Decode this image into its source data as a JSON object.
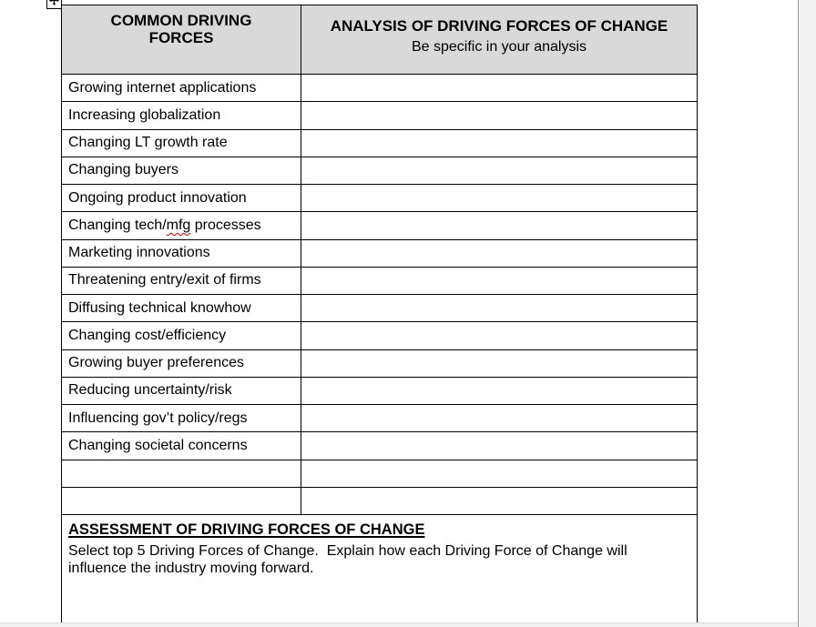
{
  "page": {
    "background_color": "#ffffff",
    "border_color": "#000000",
    "header_bg_color": "#d9d9d9",
    "spellcheck_underline_color": "#e00000",
    "scrollbar_track_color": "#f1f1f1",
    "scrollbar_edge_color": "#9e9e9e"
  },
  "icons": {
    "table_move_handle": "move-cross-icon"
  },
  "table": {
    "header": {
      "col1_title": "COMMON DRIVING FORCES",
      "col2_title": "ANALYSIS OF DRIVING FORCES OF CHANGE",
      "col2_subtitle": "Be specific in your analysis"
    },
    "rows": [
      {
        "label": "Growing internet applications"
      },
      {
        "label": "Increasing globalization"
      },
      {
        "label": "Changing LT growth rate"
      },
      {
        "label": "Changing buyers"
      },
      {
        "label": "Ongoing product innovation"
      },
      {
        "label": "Changing tech/mfg processes",
        "misspelled": "mfg"
      },
      {
        "label": "Marketing innovations"
      },
      {
        "label": "Threatening entry/exit of firms"
      },
      {
        "label": "Diffusing technical knowhow"
      },
      {
        "label": "Changing cost/efficiency"
      },
      {
        "label": "Growing buyer preferences"
      },
      {
        "label": "Reducing uncertainty/risk"
      },
      {
        "label": "Influencing gov’t policy/regs"
      },
      {
        "label": "Changing societal concerns"
      },
      {
        "label": ""
      },
      {
        "label": ""
      }
    ]
  },
  "assessment": {
    "heading": "ASSESSMENT OF DRIVING FORCES OF CHANGE",
    "body_line1": "Select top 5 Driving Forces of Change.  Explain how each Driving Force of Change will",
    "body_line2": "influence the industry moving forward."
  }
}
